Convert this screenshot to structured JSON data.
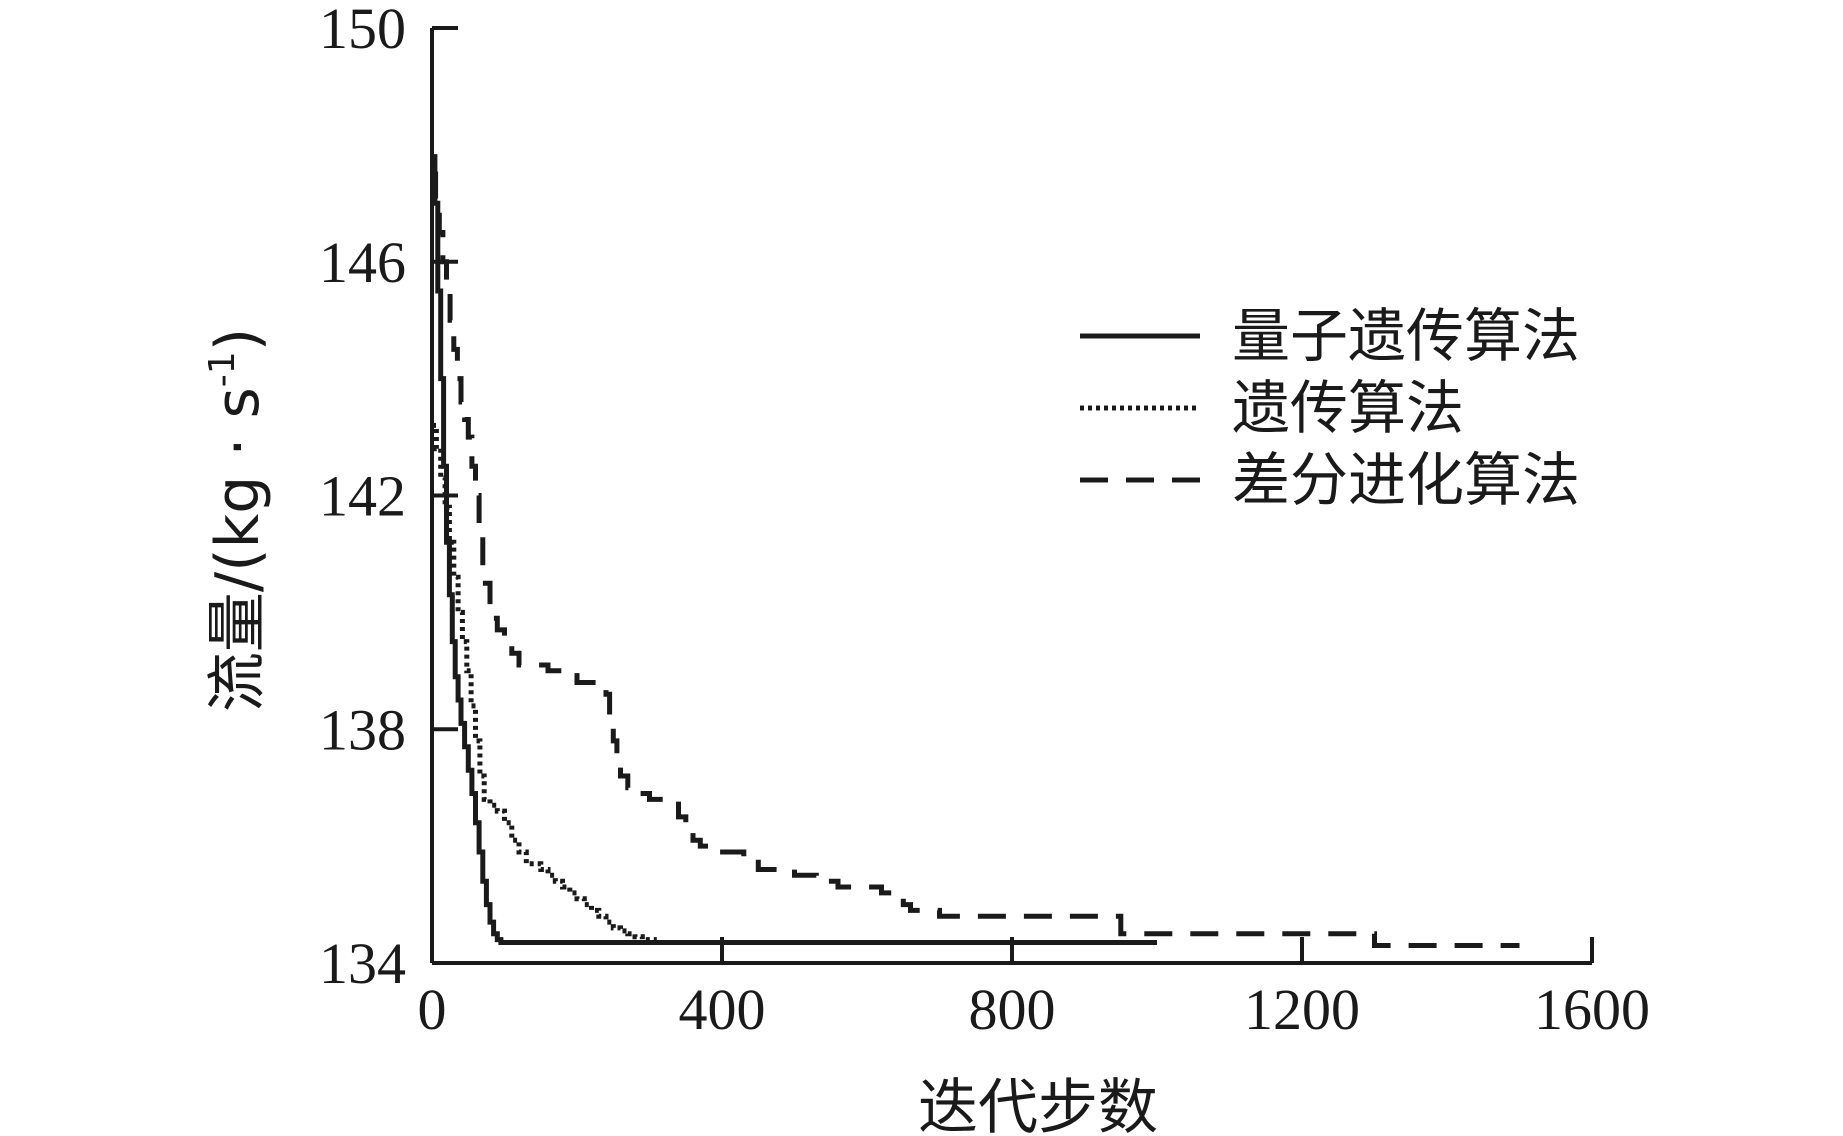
{
  "chart_data": {
    "type": "line",
    "xlabel": "迭代步数",
    "ylabel": "流量/(kg · s",
    "ylabel_sup": "-1",
    "ylabel_close": ")",
    "xlim": [
      0,
      1600
    ],
    "ylim": [
      134,
      150
    ],
    "xticks": [
      {
        "value": 0,
        "label": "0"
      },
      {
        "value": 400,
        "label": "400"
      },
      {
        "value": 800,
        "label": "800"
      },
      {
        "value": 1200,
        "label": "1200"
      },
      {
        "value": 1600,
        "label": "1600"
      }
    ],
    "yticks": [
      {
        "value": 134,
        "label": "134"
      },
      {
        "value": 138,
        "label": "138"
      },
      {
        "value": 142,
        "label": "142"
      },
      {
        "value": 146,
        "label": "146"
      },
      {
        "value": 150,
        "label": "150"
      }
    ],
    "legend_position": "right",
    "series": [
      {
        "name": "量子遗传算法",
        "style": "solid",
        "x": [
          0,
          4,
          8,
          12,
          16,
          20,
          24,
          28,
          32,
          36,
          40,
          45,
          50,
          55,
          60,
          65,
          70,
          75,
          80,
          85,
          90,
          95,
          100,
          120,
          150,
          200,
          300,
          500,
          700,
          900,
          1000
        ],
        "y": [
          147.8,
          147.0,
          145.5,
          144.0,
          142.5,
          141.2,
          140.3,
          139.5,
          138.9,
          138.5,
          138.1,
          137.7,
          137.3,
          136.9,
          136.4,
          135.9,
          135.4,
          135.0,
          134.7,
          134.5,
          134.4,
          134.35,
          134.35,
          134.35,
          134.35,
          134.35,
          134.35,
          134.35,
          134.35,
          134.35,
          134.35
        ]
      },
      {
        "name": "遗传算法",
        "style": "dotted",
        "x": [
          0,
          6,
          12,
          18,
          24,
          30,
          36,
          42,
          48,
          54,
          60,
          66,
          72,
          80,
          90,
          100,
          110,
          120,
          130,
          140,
          150,
          160,
          170,
          180,
          190,
          200,
          210,
          220,
          230,
          240,
          250,
          260,
          270,
          280,
          290,
          300,
          310
        ],
        "y": [
          143.2,
          142.8,
          142.3,
          141.8,
          141.2,
          140.6,
          140.0,
          139.5,
          139.0,
          138.4,
          137.8,
          137.2,
          136.8,
          136.7,
          136.6,
          136.4,
          136.1,
          135.9,
          135.7,
          135.7,
          135.6,
          135.5,
          135.4,
          135.3,
          135.2,
          135.1,
          135.0,
          134.9,
          134.8,
          134.7,
          134.6,
          134.55,
          134.5,
          134.45,
          134.4,
          134.4,
          134.4
        ]
      },
      {
        "name": "差分进化算法",
        "style": "dashed",
        "x": [
          0,
          5,
          10,
          15,
          20,
          25,
          30,
          35,
          40,
          45,
          50,
          55,
          60,
          65,
          70,
          80,
          90,
          100,
          110,
          120,
          160,
          200,
          240,
          245,
          250,
          255,
          260,
          270,
          280,
          300,
          320,
          340,
          350,
          360,
          370,
          380,
          390,
          410,
          430,
          450,
          470,
          500,
          530,
          560,
          590,
          620,
          650,
          660,
          670,
          700,
          750,
          800,
          850,
          900,
          950,
          1000,
          1100,
          1200,
          1300,
          1400,
          1500
        ],
        "y": [
          147.5,
          147.0,
          146.5,
          146.0,
          145.5,
          145.0,
          144.5,
          144.0,
          143.6,
          143.3,
          143.0,
          142.5,
          142.0,
          141.5,
          140.5,
          139.9,
          139.7,
          139.5,
          139.3,
          139.1,
          139.0,
          138.8,
          138.6,
          138.2,
          137.8,
          137.4,
          137.2,
          137.0,
          136.9,
          136.8,
          136.8,
          136.5,
          136.3,
          136.1,
          136.0,
          136.0,
          135.9,
          135.9,
          135.8,
          135.6,
          135.6,
          135.5,
          135.4,
          135.3,
          135.3,
          135.2,
          135.0,
          134.9,
          134.9,
          134.8,
          134.8,
          134.8,
          134.8,
          134.8,
          134.5,
          134.5,
          134.5,
          134.5,
          134.3,
          134.3,
          134.3
        ]
      }
    ]
  }
}
